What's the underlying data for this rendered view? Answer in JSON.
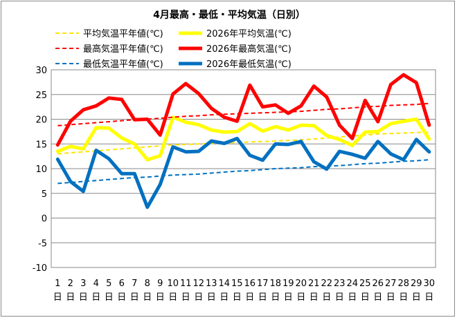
{
  "chart_data": {
    "type": "line",
    "title": "4月最高・最低・平均気温（日別）",
    "xlabel": "",
    "ylabel": "",
    "ylim": [
      -10,
      30
    ],
    "yticks": [
      -10,
      -5,
      0,
      5,
      10,
      15,
      20,
      25,
      30
    ],
    "grid": true,
    "legend_position": "top",
    "day_suffix": "日",
    "categories": [
      "1",
      "2",
      "3",
      "4",
      "5",
      "6",
      "7",
      "8",
      "9",
      "10",
      "11",
      "12",
      "13",
      "14",
      "15",
      "16",
      "17",
      "18",
      "19",
      "20",
      "21",
      "22",
      "23",
      "24",
      "25",
      "26",
      "27",
      "28",
      "29",
      "30"
    ],
    "series": [
      {
        "name": "平均気温平年値(℃)",
        "color": "#FFE400",
        "dashed": true,
        "values": [
          13.0,
          13.2,
          13.4,
          13.6,
          13.8,
          14.0,
          14.2,
          14.4,
          14.6,
          14.8,
          14.9,
          15.0,
          15.1,
          15.2,
          15.3,
          15.4,
          15.5,
          15.6,
          15.7,
          15.8,
          16.0,
          16.2,
          16.4,
          16.6,
          16.8,
          17.0,
          17.1,
          17.2,
          17.3,
          17.4
        ]
      },
      {
        "name": "2026年平均気温(℃)",
        "color": "#FFFF00",
        "dashed": false,
        "values": [
          13.5,
          14.5,
          14.0,
          18.3,
          18.2,
          16.2,
          15.0,
          11.8,
          12.6,
          20.4,
          19.4,
          18.9,
          17.8,
          17.4,
          17.5,
          19.1,
          17.6,
          18.5,
          17.8,
          18.8,
          18.7,
          16.7,
          15.9,
          14.7,
          17.4,
          17.5,
          19.1,
          19.6,
          20.0,
          16.0
        ]
      },
      {
        "name": "最高気温平年値(℃)",
        "color": "#FF0000",
        "dashed": true,
        "values": [
          18.7,
          18.9,
          19.1,
          19.3,
          19.5,
          19.7,
          19.9,
          20.0,
          20.2,
          20.4,
          20.6,
          20.7,
          20.9,
          21.0,
          21.1,
          21.2,
          21.3,
          21.4,
          21.5,
          21.6,
          21.8,
          22.0,
          22.1,
          22.3,
          22.5,
          22.6,
          22.8,
          22.9,
          23.0,
          23.2
        ]
      },
      {
        "name": "2026年最高気温(℃)",
        "color": "#FF0000",
        "dashed": false,
        "values": [
          14.8,
          19.6,
          21.9,
          22.7,
          24.3,
          24.0,
          19.9,
          20.0,
          16.8,
          25.1,
          27.2,
          25.2,
          22.2,
          20.4,
          19.6,
          26.9,
          22.5,
          22.9,
          21.2,
          22.7,
          26.7,
          24.5,
          18.8,
          16.1,
          23.8,
          19.5,
          27.0,
          29.0,
          27.4,
          18.8
        ]
      },
      {
        "name": "最低気温平年値(℃)",
        "color": "#0070C0",
        "dashed": true,
        "values": [
          7.0,
          7.2,
          7.4,
          7.6,
          7.8,
          8.0,
          8.2,
          8.3,
          8.5,
          8.7,
          8.8,
          8.9,
          9.1,
          9.3,
          9.5,
          9.6,
          9.8,
          10.0,
          10.1,
          10.2,
          10.4,
          10.5,
          10.6,
          10.8,
          11.0,
          11.1,
          11.3,
          11.5,
          11.6,
          11.8
        ]
      },
      {
        "name": "2026年最低気温(℃)",
        "color": "#0070C0",
        "dashed": false,
        "values": [
          11.9,
          7.4,
          5.4,
          13.7,
          12.0,
          9.0,
          9.0,
          2.2,
          6.8,
          14.4,
          13.4,
          13.5,
          15.6,
          15.1,
          16.1,
          12.7,
          11.7,
          15.0,
          14.9,
          15.5,
          11.4,
          9.9,
          13.5,
          12.9,
          12.1,
          15.5,
          13.0,
          11.8,
          15.9,
          13.4
        ]
      }
    ]
  }
}
